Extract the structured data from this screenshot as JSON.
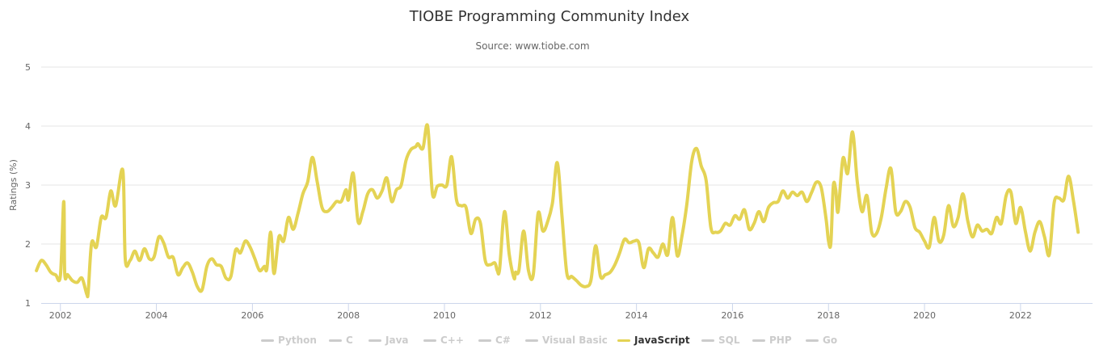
{
  "header": {
    "title": "TIOBE Programming Community Index",
    "subtitle": "Source: www.tiobe.com"
  },
  "colors": {
    "active": "#e4d354",
    "inactive": "#cccccc",
    "text": "#333333",
    "grid": "#e6e6e6",
    "axis": "#ccd6eb"
  },
  "legend": {
    "items": [
      {
        "label": "Python",
        "active": false
      },
      {
        "label": "C",
        "active": false
      },
      {
        "label": "Java",
        "active": false
      },
      {
        "label": "C++",
        "active": false
      },
      {
        "label": "C#",
        "active": false
      },
      {
        "label": "Visual Basic",
        "active": false
      },
      {
        "label": "JavaScript",
        "active": true
      },
      {
        "label": "SQL",
        "active": false
      },
      {
        "label": "PHP",
        "active": false
      },
      {
        "label": "Go",
        "active": false
      }
    ]
  },
  "chart_data": {
    "type": "line",
    "title": "TIOBE Programming Community Index",
    "subtitle": "Source: www.tiobe.com",
    "ylabel": "Ratings (%)",
    "xlabel": "",
    "ylim": [
      1,
      5
    ],
    "xlim": [
      2001.6,
      2023.5
    ],
    "y_ticks": [
      "1",
      "2",
      "3",
      "4",
      "5"
    ],
    "x_ticks": [
      "2002",
      "2004",
      "2006",
      "2008",
      "2010",
      "2012",
      "2014",
      "2016",
      "2018",
      "2020",
      "2022"
    ],
    "grid": true,
    "legend_position": "bottom",
    "series": [
      {
        "name": "JavaScript",
        "color": "#e4d354",
        "x": [
          2001.5,
          2001.6,
          2001.7,
          2001.8,
          2001.9,
          2002.0,
          2002.07,
          2002.09,
          2002.15,
          2002.25,
          2002.35,
          2002.45,
          2002.55,
          2002.58,
          2002.65,
          2002.75,
          2002.85,
          2002.95,
          2003.05,
          2003.15,
          2003.3,
          2003.35,
          2003.45,
          2003.55,
          2003.65,
          2003.75,
          2003.85,
          2003.95,
          2004.05,
          2004.15,
          2004.25,
          2004.35,
          2004.45,
          2004.55,
          2004.65,
          2004.75,
          2004.85,
          2004.95,
          2005.05,
          2005.15,
          2005.25,
          2005.35,
          2005.45,
          2005.55,
          2005.65,
          2005.75,
          2005.85,
          2005.95,
          2006.05,
          2006.15,
          2006.25,
          2006.3,
          2006.38,
          2006.45,
          2006.55,
          2006.65,
          2006.75,
          2006.85,
          2006.95,
          2007.05,
          2007.15,
          2007.25,
          2007.35,
          2007.45,
          2007.55,
          2007.65,
          2007.75,
          2007.85,
          2007.95,
          2008.0,
          2008.1,
          2008.2,
          2008.3,
          2008.4,
          2008.5,
          2008.6,
          2008.7,
          2008.8,
          2008.9,
          2009.0,
          2009.1,
          2009.2,
          2009.3,
          2009.4,
          2009.45,
          2009.55,
          2009.65,
          2009.75,
          2009.85,
          2009.95,
          2010.05,
          2010.15,
          2010.25,
          2010.35,
          2010.45,
          2010.55,
          2010.65,
          2010.75,
          2010.85,
          2010.95,
          2011.05,
          2011.1,
          2011.15,
          2011.25,
          2011.35,
          2011.45,
          2011.48,
          2011.55,
          2011.65,
          2011.75,
          2011.85,
          2011.95,
          2012.05,
          2012.15,
          2012.25,
          2012.35,
          2012.45,
          2012.55,
          2012.65,
          2012.75,
          2012.85,
          2012.95,
          2013.05,
          2013.15,
          2013.25,
          2013.35,
          2013.45,
          2013.55,
          2013.65,
          2013.75,
          2013.85,
          2013.95,
          2014.05,
          2014.15,
          2014.25,
          2014.35,
          2014.45,
          2014.55,
          2014.65,
          2014.75,
          2014.85,
          2014.95,
          2015.05,
          2015.15,
          2015.25,
          2015.35,
          2015.45,
          2015.55,
          2015.65,
          2015.75,
          2015.85,
          2015.95,
          2016.05,
          2016.15,
          2016.25,
          2016.35,
          2016.45,
          2016.55,
          2016.65,
          2016.75,
          2016.85,
          2016.95,
          2017.05,
          2017.15,
          2017.25,
          2017.35,
          2017.45,
          2017.55,
          2017.65,
          2017.75,
          2017.85,
          2017.95,
          2018.0,
          2018.05,
          2018.1,
          2018.15,
          2018.2,
          2018.3,
          2018.4,
          2018.5,
          2018.6,
          2018.7,
          2018.8,
          2018.9,
          2019.0,
          2019.1,
          2019.2,
          2019.3,
          2019.4,
          2019.5,
          2019.6,
          2019.7,
          2019.8,
          2019.9,
          2020.0,
          2020.1,
          2020.2,
          2020.3,
          2020.4,
          2020.5,
          2020.6,
          2020.7,
          2020.8,
          2020.9,
          2021.0,
          2021.1,
          2021.2,
          2021.3,
          2021.4,
          2021.5,
          2021.6,
          2021.7,
          2021.8,
          2021.9,
          2022.0,
          2022.1,
          2022.2,
          2022.3,
          2022.4,
          2022.5,
          2022.6,
          2022.7,
          2022.8,
          2022.9,
          2023.0,
          2023.1,
          2023.2
        ],
        "values": [
          1.55,
          1.72,
          1.65,
          1.52,
          1.48,
          1.47,
          2.72,
          1.5,
          1.48,
          1.38,
          1.35,
          1.42,
          1.15,
          1.2,
          2.02,
          1.95,
          2.45,
          2.45,
          2.9,
          2.65,
          3.25,
          1.75,
          1.72,
          1.88,
          1.72,
          1.92,
          1.75,
          1.78,
          2.12,
          2.02,
          1.78,
          1.77,
          1.48,
          1.6,
          1.68,
          1.52,
          1.28,
          1.22,
          1.62,
          1.75,
          1.65,
          1.62,
          1.42,
          1.45,
          1.9,
          1.85,
          2.05,
          1.95,
          1.75,
          1.55,
          1.62,
          1.58,
          2.2,
          1.5,
          2.12,
          2.05,
          2.45,
          2.25,
          2.52,
          2.85,
          3.05,
          3.47,
          3.05,
          2.62,
          2.55,
          2.62,
          2.72,
          2.72,
          2.92,
          2.75,
          3.2,
          2.38,
          2.55,
          2.85,
          2.92,
          2.78,
          2.9,
          3.12,
          2.72,
          2.92,
          3.0,
          3.42,
          3.6,
          3.65,
          3.7,
          3.62,
          4.0,
          2.85,
          2.98,
          3.0,
          3.0,
          3.48,
          2.75,
          2.65,
          2.62,
          2.18,
          2.42,
          2.35,
          1.72,
          1.65,
          1.68,
          1.55,
          1.58,
          2.55,
          1.82,
          1.42,
          1.52,
          1.55,
          2.22,
          1.55,
          1.48,
          2.52,
          2.22,
          2.38,
          2.7,
          3.38,
          2.45,
          1.5,
          1.45,
          1.38,
          1.3,
          1.28,
          1.38,
          1.97,
          1.45,
          1.48,
          1.52,
          1.65,
          1.85,
          2.08,
          2.02,
          2.05,
          2.02,
          1.6,
          1.92,
          1.85,
          1.78,
          2.0,
          1.82,
          2.45,
          1.8,
          2.15,
          2.68,
          3.4,
          3.62,
          3.32,
          3.08,
          2.28,
          2.2,
          2.22,
          2.35,
          2.32,
          2.48,
          2.42,
          2.58,
          2.25,
          2.35,
          2.55,
          2.38,
          2.62,
          2.7,
          2.72,
          2.9,
          2.78,
          2.88,
          2.82,
          2.88,
          2.72,
          2.88,
          3.05,
          2.95,
          2.42,
          2.05,
          2.02,
          2.98,
          2.92,
          2.55,
          3.45,
          3.2,
          3.9,
          3.05,
          2.55,
          2.82,
          2.2,
          2.18,
          2.45,
          2.95,
          3.28,
          2.55,
          2.55,
          2.72,
          2.62,
          2.28,
          2.2,
          2.05,
          1.95,
          2.45,
          2.05,
          2.15,
          2.65,
          2.3,
          2.45,
          2.85,
          2.4,
          2.12,
          2.32,
          2.22,
          2.25,
          2.18,
          2.45,
          2.35,
          2.82,
          2.88,
          2.35,
          2.62,
          2.22,
          1.88,
          2.2,
          2.38,
          2.12,
          1.82,
          2.7,
          2.78,
          2.75,
          3.15,
          2.75,
          2.2
        ]
      }
    ]
  }
}
